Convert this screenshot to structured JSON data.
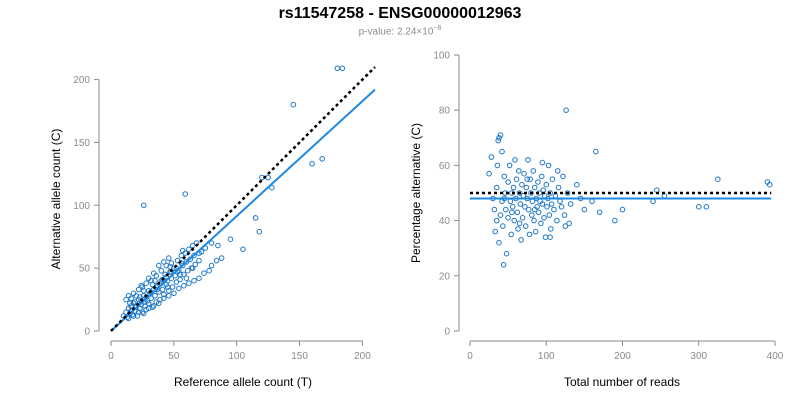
{
  "title": "rs11547258 - ENSG00000012963",
  "subtitle_prefix": "p-value: 2.24×10",
  "subtitle_exp": "−8",
  "colors": {
    "points": "#1f78c8",
    "fit": "#1e88e5",
    "expected": "#000000",
    "axis": "#8a8a8a"
  },
  "chart_data": [
    {
      "type": "scatter",
      "xlabel": "Reference allele count (T)",
      "ylabel": "Alternative allele count (C)",
      "xlim": [
        0,
        210
      ],
      "ylim": [
        0,
        210
      ],
      "xticks": [
        0,
        50,
        100,
        150,
        200
      ],
      "yticks": [
        0,
        50,
        100,
        150,
        200
      ],
      "expected_line": {
        "style": "dotted",
        "points": [
          [
            0,
            0
          ],
          [
            210,
            210
          ]
        ]
      },
      "fit_line": {
        "style": "solid",
        "points": [
          [
            0,
            0
          ],
          [
            210,
            192
          ]
        ]
      },
      "points": [
        [
          10,
          12
        ],
        [
          12,
          15
        ],
        [
          13,
          11
        ],
        [
          14,
          18
        ],
        [
          15,
          14
        ],
        [
          16,
          20
        ],
        [
          17,
          13
        ],
        [
          18,
          22
        ],
        [
          19,
          16
        ],
        [
          20,
          19
        ],
        [
          21,
          12
        ],
        [
          22,
          25
        ],
        [
          23,
          18
        ],
        [
          24,
          21
        ],
        [
          25,
          15
        ],
        [
          26,
          28
        ],
        [
          27,
          20
        ],
        [
          28,
          17
        ],
        [
          29,
          24
        ],
        [
          30,
          22
        ],
        [
          31,
          30
        ],
        [
          32,
          26
        ],
        [
          33,
          19
        ],
        [
          34,
          33
        ],
        [
          35,
          28
        ],
        [
          36,
          23
        ],
        [
          37,
          36
        ],
        [
          38,
          31
        ],
        [
          39,
          25
        ],
        [
          40,
          38
        ],
        [
          41,
          33
        ],
        [
          42,
          29
        ],
        [
          43,
          45
        ],
        [
          44,
          37
        ],
        [
          45,
          40
        ],
        [
          46,
          32
        ],
        [
          47,
          47
        ],
        [
          48,
          42
        ],
        [
          49,
          35
        ],
        [
          50,
          50
        ],
        [
          51,
          44
        ],
        [
          52,
          39
        ],
        [
          53,
          56
        ],
        [
          54,
          48
        ],
        [
          55,
          41
        ],
        [
          56,
          60
        ],
        [
          57,
          52
        ],
        [
          58,
          45
        ],
        [
          59,
          62
        ],
        [
          60,
          55
        ],
        [
          61,
          48
        ],
        [
          62,
          65
        ],
        [
          63,
          57
        ],
        [
          64,
          50
        ],
        [
          65,
          68
        ],
        [
          66,
          60
        ],
        [
          67,
          53
        ],
        [
          68,
          70
        ],
        [
          70,
          56
        ],
        [
          72,
          63
        ],
        [
          12,
          25
        ],
        [
          14,
          28
        ],
        [
          15,
          22
        ],
        [
          16,
          26
        ],
        [
          18,
          30
        ],
        [
          20,
          28
        ],
        [
          22,
          33
        ],
        [
          24,
          36
        ],
        [
          26,
          32
        ],
        [
          28,
          38
        ],
        [
          30,
          42
        ],
        [
          32,
          40
        ],
        [
          34,
          46
        ],
        [
          36,
          44
        ],
        [
          38,
          52
        ],
        [
          40,
          48
        ],
        [
          42,
          55
        ],
        [
          44,
          52
        ],
        [
          46,
          58
        ],
        [
          48,
          54
        ],
        [
          14,
          10
        ],
        [
          18,
          12
        ],
        [
          22,
          15
        ],
        [
          26,
          14
        ],
        [
          30,
          18
        ],
        [
          34,
          20
        ],
        [
          38,
          22
        ],
        [
          42,
          26
        ],
        [
          46,
          28
        ],
        [
          50,
          30
        ],
        [
          54,
          34
        ],
        [
          58,
          36
        ],
        [
          62,
          38
        ],
        [
          66,
          40
        ],
        [
          70,
          42
        ],
        [
          74,
          46
        ],
        [
          78,
          48
        ],
        [
          80,
          52
        ],
        [
          84,
          56
        ],
        [
          88,
          58
        ],
        [
          20,
          20
        ],
        [
          24,
          24
        ],
        [
          28,
          27
        ],
        [
          32,
          31
        ],
        [
          36,
          35
        ],
        [
          40,
          40
        ],
        [
          44,
          43
        ],
        [
          48,
          47
        ],
        [
          52,
          50
        ],
        [
          56,
          54
        ],
        [
          25,
          35
        ],
        [
          30,
          32
        ],
        [
          35,
          40
        ],
        [
          45,
          35
        ],
        [
          55,
          45
        ],
        [
          60,
          42
        ],
        [
          65,
          50
        ],
        [
          70,
          62
        ],
        [
          75,
          66
        ],
        [
          80,
          70
        ],
        [
          16,
          16
        ],
        [
          19,
          23
        ],
        [
          23,
          27
        ],
        [
          27,
          23
        ],
        [
          33,
          37
        ],
        [
          37,
          33
        ],
        [
          41,
          41
        ],
        [
          47,
          51
        ],
        [
          53,
          47
        ],
        [
          57,
          64
        ],
        [
          26,
          100
        ],
        [
          59,
          109
        ],
        [
          85,
          68
        ],
        [
          95,
          73
        ],
        [
          105,
          65
        ],
        [
          115,
          90
        ],
        [
          118,
          79
        ],
        [
          120,
          122
        ],
        [
          125,
          122
        ],
        [
          128,
          114
        ],
        [
          145,
          180
        ],
        [
          160,
          133
        ],
        [
          168,
          137
        ],
        [
          180,
          209
        ],
        [
          184,
          209
        ]
      ]
    },
    {
      "type": "scatter",
      "xlabel": "Total number of reads",
      "ylabel": "Percentage alternative (C)",
      "xlim": [
        0,
        400
      ],
      "ylim": [
        0,
        100
      ],
      "xticks": [
        0,
        100,
        200,
        300,
        400
      ],
      "yticks": [
        0,
        20,
        40,
        60,
        80,
        100
      ],
      "expected_line": {
        "style": "dotted",
        "y": 50,
        "x": [
          0,
          395
        ]
      },
      "fit_line": {
        "style": "solid",
        "y": 48,
        "x": [
          0,
          395
        ]
      },
      "points": [
        [
          25,
          57
        ],
        [
          28,
          63
        ],
        [
          30,
          48
        ],
        [
          32,
          44
        ],
        [
          33,
          36
        ],
        [
          35,
          52
        ],
        [
          36,
          60
        ],
        [
          37,
          69
        ],
        [
          38,
          70
        ],
        [
          38,
          32
        ],
        [
          40,
          71
        ],
        [
          40,
          42
        ],
        [
          42,
          65
        ],
        [
          42,
          47
        ],
        [
          43,
          38
        ],
        [
          44,
          24
        ],
        [
          45,
          56
        ],
        [
          46,
          50
        ],
        [
          47,
          44
        ],
        [
          48,
          28
        ],
        [
          50,
          54
        ],
        [
          50,
          41
        ],
        [
          52,
          60
        ],
        [
          53,
          47
        ],
        [
          54,
          35
        ],
        [
          55,
          50
        ],
        [
          56,
          45
        ],
        [
          57,
          52
        ],
        [
          58,
          40
        ],
        [
          59,
          62
        ],
        [
          60,
          48
        ],
        [
          61,
          55
        ],
        [
          62,
          43
        ],
        [
          63,
          37
        ],
        [
          64,
          58
        ],
        [
          65,
          50
        ],
        [
          66,
          46
        ],
        [
          67,
          33
        ],
        [
          68,
          53
        ],
        [
          69,
          41
        ],
        [
          70,
          49
        ],
        [
          71,
          57
        ],
        [
          72,
          45
        ],
        [
          73,
          38
        ],
        [
          74,
          52
        ],
        [
          75,
          48
        ],
        [
          76,
          62
        ],
        [
          77,
          44
        ],
        [
          78,
          35
        ],
        [
          79,
          55
        ],
        [
          80,
          50
        ],
        [
          81,
          42
        ],
        [
          82,
          47
        ],
        [
          83,
          58
        ],
        [
          84,
          40
        ],
        [
          85,
          52
        ],
        [
          86,
          36
        ],
        [
          87,
          48
        ],
        [
          88,
          45
        ],
        [
          89,
          54
        ],
        [
          90,
          43
        ],
        [
          91,
          50
        ],
        [
          92,
          47
        ],
        [
          93,
          39
        ],
        [
          94,
          56
        ],
        [
          95,
          46
        ],
        [
          96,
          51
        ],
        [
          97,
          41
        ],
        [
          98,
          49
        ],
        [
          99,
          34
        ],
        [
          100,
          53
        ],
        [
          101,
          45
        ],
        [
          102,
          48
        ],
        [
          103,
          60
        ],
        [
          104,
          42
        ],
        [
          105,
          50
        ],
        [
          106,
          37
        ],
        [
          107,
          46
        ],
        [
          108,
          55
        ],
        [
          110,
          44
        ],
        [
          112,
          49
        ],
        [
          114,
          40
        ],
        [
          116,
          52
        ],
        [
          118,
          47
        ],
        [
          120,
          45
        ],
        [
          122,
          56
        ],
        [
          124,
          42
        ],
        [
          126,
          80
        ],
        [
          128,
          50
        ],
        [
          130,
          39
        ],
        [
          132,
          46
        ],
        [
          140,
          53
        ],
        [
          145,
          48
        ],
        [
          150,
          44
        ],
        [
          160,
          47
        ],
        [
          165,
          65
        ],
        [
          170,
          43
        ],
        [
          190,
          40
        ],
        [
          200,
          44
        ],
        [
          240,
          47
        ],
        [
          245,
          51
        ],
        [
          255,
          49
        ],
        [
          300,
          45
        ],
        [
          310,
          45
        ],
        [
          325,
          55
        ],
        [
          390,
          54
        ],
        [
          393,
          53
        ],
        [
          35,
          40
        ],
        [
          45,
          48
        ],
        [
          55,
          43
        ],
        [
          65,
          39
        ],
        [
          75,
          55
        ],
        [
          85,
          44
        ],
        [
          95,
          61
        ],
        [
          105,
          34
        ],
        [
          115,
          58
        ],
        [
          125,
          38
        ]
      ]
    }
  ]
}
